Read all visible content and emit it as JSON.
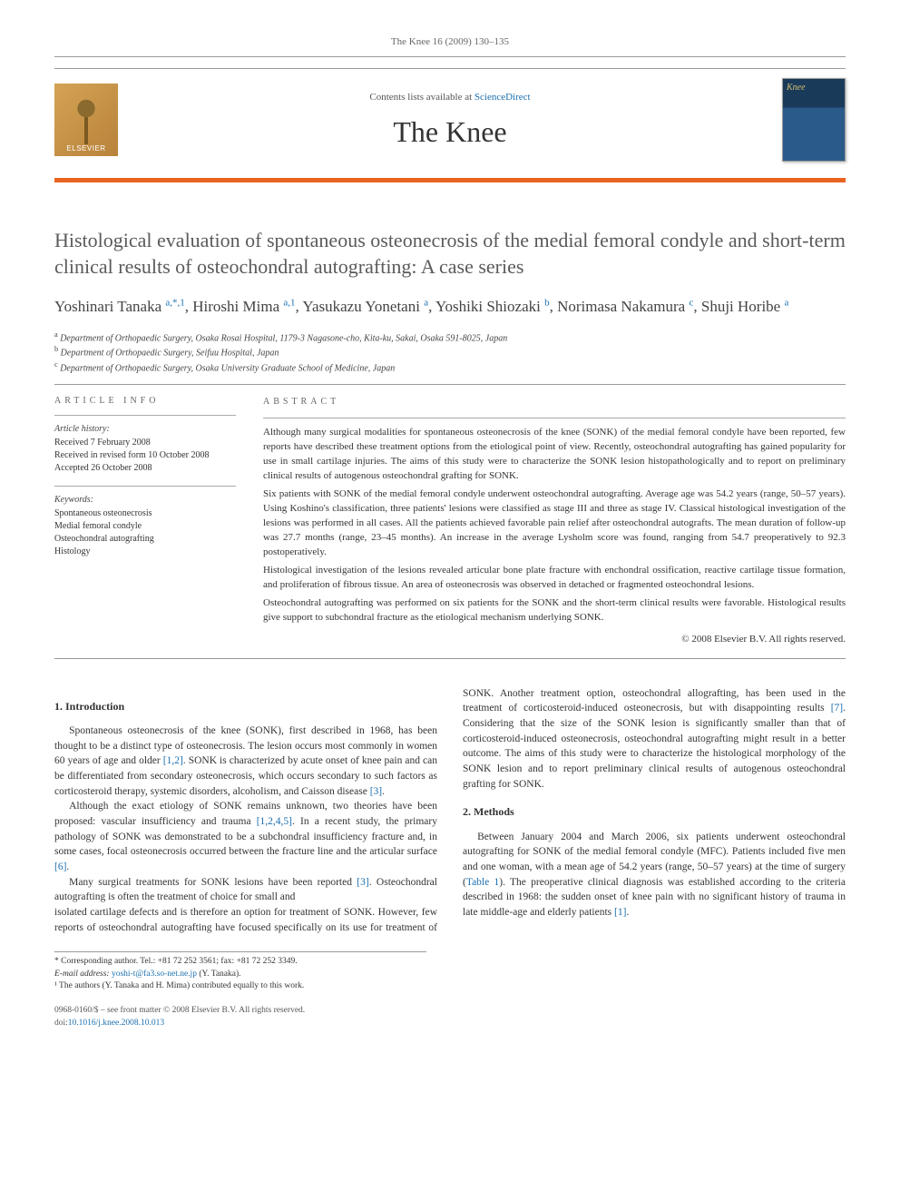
{
  "running_header": "The Knee 16 (2009) 130–135",
  "contents_line_prefix": "Contents lists available at ",
  "contents_link": "ScienceDirect",
  "journal_name": "The Knee",
  "elsevier_label": "ELSEVIER",
  "title": "Histological evaluation of spontaneous osteonecrosis of the medial femoral condyle and short-term clinical results of osteochondral autografting: A case series",
  "authors_html": [
    {
      "name": "Yoshinari Tanaka ",
      "sup": "a,*,1"
    },
    {
      "name": ", Hiroshi Mima ",
      "sup": "a,1"
    },
    {
      "name": ", Yasukazu Yonetani ",
      "sup": "a"
    },
    {
      "name": ", Yoshiki Shiozaki ",
      "sup": "b"
    },
    {
      "name": ", Norimasa Nakamura ",
      "sup": "c"
    },
    {
      "name": ", Shuji Horibe ",
      "sup": "a"
    }
  ],
  "affiliations": [
    {
      "sup": "a",
      "text": " Department of Orthopaedic Surgery, Osaka Rosai Hospital, 1179-3 Nagasone-cho, Kita-ku, Sakai, Osaka 591-8025, Japan"
    },
    {
      "sup": "b",
      "text": " Department of Orthopaedic Surgery, Seifuu Hospital, Japan"
    },
    {
      "sup": "c",
      "text": " Department of Orthopaedic Surgery, Osaka University Graduate School of Medicine, Japan"
    }
  ],
  "article_info_label": "article info",
  "history_label": "Article history:",
  "history": [
    "Received 7 February 2008",
    "Received in revised form 10 October 2008",
    "Accepted 26 October 2008"
  ],
  "keywords_label": "Keywords:",
  "keywords": [
    "Spontaneous osteonecrosis",
    "Medial femoral condyle",
    "Osteochondral autografting",
    "Histology"
  ],
  "abstract_label": "abstract",
  "abstract_paragraphs": [
    "Although many surgical modalities for spontaneous osteonecrosis of the knee (SONK) of the medial femoral condyle have been reported, few reports have described these treatment options from the etiological point of view. Recently, osteochondral autografting has gained popularity for use in small cartilage injuries. The aims of this study were to characterize the SONK lesion histopathologically and to report on preliminary clinical results of autogenous osteochondral grafting for SONK.",
    "Six patients with SONK of the medial femoral condyle underwent osteochondral autografting. Average age was 54.2 years (range, 50–57 years). Using Koshino's classification, three patients' lesions were classified as stage III and three as stage IV. Classical histological investigation of the lesions was performed in all cases. All the patients achieved favorable pain relief after osteochondral autografts. The mean duration of follow-up was 27.7 months (range, 23–45 months). An increase in the average Lysholm score was found, ranging from 54.7 preoperatively to 92.3 postoperatively.",
    "Histological investigation of the lesions revealed articular bone plate fracture with enchondral ossification, reactive cartilage tissue formation, and proliferation of fibrous tissue. An area of osteonecrosis was observed in detached or fragmented osteochondral lesions.",
    "Osteochondral autografting was performed on six patients for the SONK and the short-term clinical results were favorable. Histological results give support to subchondral fracture as the etiological mechanism underlying SONK."
  ],
  "copyright": "© 2008 Elsevier B.V. All rights reserved.",
  "sections": {
    "intro_heading": "1. Introduction",
    "intro_p1a": "Spontaneous osteonecrosis of the knee (SONK), first described in 1968, has been thought to be a distinct type of osteonecrosis. The lesion occurs most commonly in women 60 years of age and older ",
    "intro_p1_ref1": "[1,2]",
    "intro_p1b": ". SONK is characterized by acute onset of knee pain and can be differentiated from secondary osteonecrosis, which occurs secondary to such factors as corticosteroid therapy, systemic disorders, alcoholism, and Caisson disease ",
    "intro_p1_ref2": "[3]",
    "intro_p1c": ".",
    "intro_p2a": "Although the exact etiology of SONK remains unknown, two theories have been proposed: vascular insufficiency and trauma ",
    "intro_p2_ref1": "[1,2,4,5]",
    "intro_p2b": ". In a recent study, the primary pathology of SONK was demonstrated to be a subchondral insufficiency fracture and, in some cases, focal osteonecrosis occurred between the fracture line and the articular surface ",
    "intro_p2_ref2": "[6]",
    "intro_p2c": ".",
    "intro_p3a": "Many surgical treatments for SONK lesions have been reported ",
    "intro_p3_ref1": "[3]",
    "intro_p3b": ". Osteochondral autografting is often the treatment of choice for small and",
    "intro_p3_cont_a": "isolated cartilage defects and is therefore an option for treatment of SONK. However, few reports of osteochondral autografting have focused specifically on its use for treatment of SONK. Another treatment option, osteochondral allografting, has been used in the treatment of corticosteroid-induced osteonecrosis, but with disappointing results ",
    "intro_p3_cont_ref": "[7]",
    "intro_p3_cont_b": ". Considering that the size of the SONK lesion is significantly smaller than that of corticosteroid-induced osteonecrosis, osteochondral autografting might result in a better outcome. The aims of this study were to characterize the histological morphology of the SONK lesion and to report preliminary clinical results of autogenous osteochondral grafting for SONK.",
    "methods_heading": "2. Methods",
    "methods_p1a": "Between January 2004 and March 2006, six patients underwent osteochondral autografting for SONK of the medial femoral condyle (MFC). Patients included five men and one woman, with a mean age of 54.2 years (range, 50–57 years) at the time of surgery (",
    "methods_p1_ref1": "Table 1",
    "methods_p1b": "). The preoperative clinical diagnosis was established according to the criteria described in 1968: the sudden onset of knee pain with no significant history of trauma in late middle-age and elderly patients ",
    "methods_p1_ref2": "[1]",
    "methods_p1c": "."
  },
  "footnotes": {
    "corr_label": "* Corresponding author. Tel.: +81 72 252 3561; fax: +81 72 252 3349.",
    "email_label": "E-mail address: ",
    "email": "yoshi-t@fa3.so-net.ne.jp",
    "email_paren": " (Y. Tanaka).",
    "note1": "¹ The authors (Y. Tanaka and H. Mima) contributed equally to this work."
  },
  "bottom": {
    "line1": "0968-0160/$ – see front matter © 2008 Elsevier B.V. All rights reserved.",
    "doi_prefix": "doi:",
    "doi": "10.1016/j.knee.2008.10.013"
  },
  "colors": {
    "accent_orange": "#e8641f",
    "link_blue": "#1a6faf",
    "text_gray": "#5a5a5a"
  }
}
